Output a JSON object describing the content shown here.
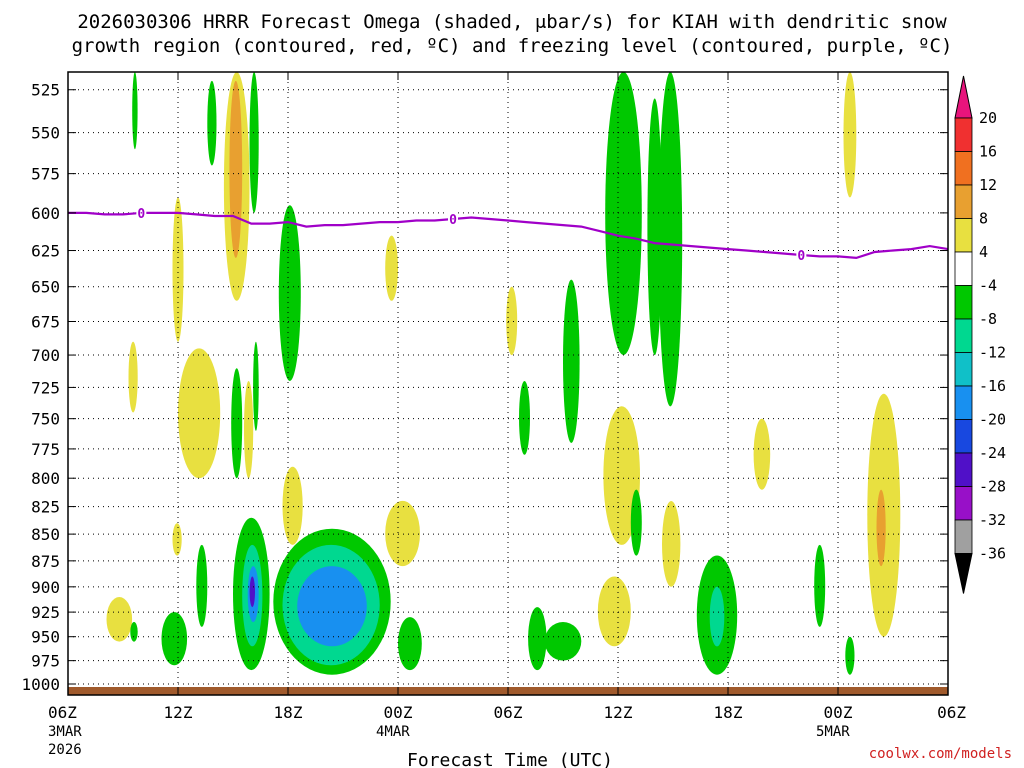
{
  "chart_data": {
    "type": "heatmap",
    "title_line1": "2026030306 HRRR Forecast Omega (shaded, μbar/s) for KIAH with dendritic snow",
    "title_line2": "growth region (contoured, red, ºC) and freezing level (contoured, purple, ºC)",
    "xlabel": "Forecast Time (UTC)",
    "credit": "coolwx.com/models",
    "x_range_hours": [
      0,
      48
    ],
    "y_range_hPa": [
      515,
      1012
    ],
    "y_ticks": [
      "525",
      "550",
      "575",
      "600",
      "625",
      "650",
      "675",
      "700",
      "725",
      "750",
      "775",
      "800",
      "825",
      "850",
      "875",
      "900",
      "925",
      "950",
      "975",
      "1000"
    ],
    "x_ticks": [
      {
        "hour": 0,
        "label": "06Z",
        "sub1": "3MAR",
        "sub2": "2026"
      },
      {
        "hour": 6,
        "label": "12Z",
        "sub1": "",
        "sub2": ""
      },
      {
        "hour": 12,
        "label": "18Z",
        "sub1": "",
        "sub2": ""
      },
      {
        "hour": 18,
        "label": "00Z",
        "sub1": "4MAR",
        "sub2": ""
      },
      {
        "hour": 24,
        "label": "06Z",
        "sub1": "",
        "sub2": ""
      },
      {
        "hour": 30,
        "label": "12Z",
        "sub1": "",
        "sub2": ""
      },
      {
        "hour": 36,
        "label": "18Z",
        "sub1": "",
        "sub2": ""
      },
      {
        "hour": 42,
        "label": "00Z",
        "sub1": "5MAR",
        "sub2": ""
      },
      {
        "hour": 48,
        "label": "06Z",
        "sub1": "",
        "sub2": ""
      }
    ],
    "colorbar": {
      "labels": [
        "20",
        "16",
        "12",
        "8",
        "4",
        "-4",
        "-8",
        "-12",
        "-16",
        "-20",
        "-24",
        "-28",
        "-32",
        "-36"
      ],
      "colors": [
        "#e8147c",
        "#f03030",
        "#f07020",
        "#e8a030",
        "#e8e040",
        "#ffffff",
        "#00c800",
        "#00d890",
        "#10c0c8",
        "#1890f0",
        "#1848e0",
        "#5010c8",
        "#9810c8",
        "#a0a0a0",
        "#000000"
      ]
    },
    "freezing_level": {
      "label": "0",
      "label_hours": [
        4,
        21,
        40
      ],
      "hours": [
        0,
        1,
        2,
        3,
        4,
        5,
        6,
        7,
        8,
        9,
        10,
        11,
        12,
        13,
        14,
        15,
        16,
        17,
        18,
        19,
        20,
        21,
        22,
        23,
        24,
        25,
        26,
        27,
        28,
        29,
        30,
        31,
        32,
        33,
        34,
        35,
        36,
        37,
        38,
        39,
        40,
        41,
        42,
        43,
        44,
        45,
        46,
        47,
        48
      ],
      "pressure": [
        600,
        600,
        601,
        601,
        600,
        600,
        600,
        601,
        602,
        602,
        607,
        607,
        606,
        609,
        608,
        608,
        607,
        606,
        606,
        605,
        605,
        604,
        603,
        604,
        605,
        606,
        607,
        608,
        609,
        612,
        615,
        617,
        620,
        621,
        622,
        623,
        624,
        625,
        626,
        627,
        628,
        629,
        629,
        630,
        626,
        625,
        624,
        622,
        624
      ]
    },
    "omega_regions": [
      {
        "value": -8,
        "t": [
          3.5,
          3.8
        ],
        "p": [
          515,
          560
        ]
      },
      {
        "value": 4,
        "t": [
          2.1,
          3.5
        ],
        "p": [
          910,
          955
        ]
      },
      {
        "value": -8,
        "t": [
          3.4,
          3.8
        ],
        "p": [
          935,
          955
        ]
      },
      {
        "value": 4,
        "t": [
          3.3,
          3.8
        ],
        "p": [
          690,
          745
        ]
      },
      {
        "value": 4,
        "t": [
          5.7,
          6.3
        ],
        "p": [
          590,
          690
        ]
      },
      {
        "value": 4,
        "t": [
          5.7,
          6.2
        ],
        "p": [
          840,
          870
        ]
      },
      {
        "value": 4,
        "t": [
          6.0,
          8.3
        ],
        "p": [
          695,
          800
        ]
      },
      {
        "value": -8,
        "t": [
          5.1,
          6.5
        ],
        "p": [
          925,
          980
        ]
      },
      {
        "value": -8,
        "t": [
          7.6,
          8.1
        ],
        "p": [
          520,
          570
        ]
      },
      {
        "value": 4,
        "t": [
          8.5,
          9.9
        ],
        "p": [
          515,
          660
        ]
      },
      {
        "value": 8,
        "t": [
          8.8,
          9.5
        ],
        "p": [
          520,
          630
        ]
      },
      {
        "value": -8,
        "t": [
          9.9,
          10.4
        ],
        "p": [
          515,
          600
        ]
      },
      {
        "value": -8,
        "t": [
          8.9,
          9.5
        ],
        "p": [
          710,
          800
        ]
      },
      {
        "value": 4,
        "t": [
          9.6,
          10.1
        ],
        "p": [
          720,
          800
        ]
      },
      {
        "value": -8,
        "t": [
          10.1,
          10.4
        ],
        "p": [
          690,
          760
        ]
      },
      {
        "value": -8,
        "t": [
          7.0,
          7.6
        ],
        "p": [
          860,
          940
        ]
      },
      {
        "value": -8,
        "t": [
          9.0,
          11.0
        ],
        "p": [
          835,
          985
        ]
      },
      {
        "value": -12,
        "t": [
          9.5,
          10.6
        ],
        "p": [
          860,
          960
        ]
      },
      {
        "value": -16,
        "t": [
          9.8,
          10.4
        ],
        "p": [
          880,
          935
        ]
      },
      {
        "value": -28,
        "t": [
          9.9,
          10.2
        ],
        "p": [
          890,
          920
        ]
      },
      {
        "value": -8,
        "t": [
          11.5,
          12.7
        ],
        "p": [
          595,
          720
        ]
      },
      {
        "value": 4,
        "t": [
          11.7,
          12.8
        ],
        "p": [
          790,
          860
        ]
      },
      {
        "value": -8,
        "t": [
          11.2,
          17.6
        ],
        "p": [
          845,
          990
        ]
      },
      {
        "value": -12,
        "t": [
          11.7,
          17.0
        ],
        "p": [
          860,
          980
        ]
      },
      {
        "value": -16,
        "t": [
          12.5,
          16.3
        ],
        "p": [
          880,
          960
        ]
      },
      {
        "value": 4,
        "t": [
          17.3,
          18.0
        ],
        "p": [
          615,
          660
        ]
      },
      {
        "value": 4,
        "t": [
          17.3,
          19.2
        ],
        "p": [
          820,
          880
        ]
      },
      {
        "value": -8,
        "t": [
          18.0,
          19.3
        ],
        "p": [
          930,
          985
        ]
      },
      {
        "value": 4,
        "t": [
          23.9,
          24.5
        ],
        "p": [
          650,
          700
        ]
      },
      {
        "value": -8,
        "t": [
          24.6,
          25.2
        ],
        "p": [
          720,
          780
        ]
      },
      {
        "value": -8,
        "t": [
          26.0,
          28.0
        ],
        "p": [
          935,
          975
        ]
      },
      {
        "value": -8,
        "t": [
          25.1,
          26.1
        ],
        "p": [
          920,
          985
        ]
      },
      {
        "value": -8,
        "t": [
          27.0,
          27.9
        ],
        "p": [
          645,
          770
        ]
      },
      {
        "value": -8,
        "t": [
          29.3,
          31.3
        ],
        "p": [
          515,
          700
        ]
      },
      {
        "value": -8,
        "t": [
          31.6,
          32.4
        ],
        "p": [
          530,
          700
        ]
      },
      {
        "value": -8,
        "t": [
          32.2,
          33.5
        ],
        "p": [
          515,
          740
        ]
      },
      {
        "value": 4,
        "t": [
          29.2,
          31.2
        ],
        "p": [
          740,
          860
        ]
      },
      {
        "value": 4,
        "t": [
          32.4,
          33.4
        ],
        "p": [
          820,
          900
        ]
      },
      {
        "value": -8,
        "t": [
          30.7,
          31.3
        ],
        "p": [
          810,
          870
        ]
      },
      {
        "value": 4,
        "t": [
          28.9,
          30.7
        ],
        "p": [
          890,
          960
        ]
      },
      {
        "value": -8,
        "t": [
          34.3,
          36.5
        ],
        "p": [
          870,
          990
        ]
      },
      {
        "value": -12,
        "t": [
          35.0,
          35.8
        ],
        "p": [
          900,
          960
        ]
      },
      {
        "value": 4,
        "t": [
          37.4,
          38.3
        ],
        "p": [
          750,
          810
        ]
      },
      {
        "value": -8,
        "t": [
          40.7,
          41.3
        ],
        "p": [
          860,
          940
        ]
      },
      {
        "value": 4,
        "t": [
          42.3,
          43.0
        ],
        "p": [
          515,
          590
        ]
      },
      {
        "value": -8,
        "t": [
          42.4,
          42.9
        ],
        "p": [
          950,
          990
        ]
      },
      {
        "value": 4,
        "t": [
          43.6,
          45.4
        ],
        "p": [
          730,
          950
        ]
      },
      {
        "value": 8,
        "t": [
          44.1,
          44.6
        ],
        "p": [
          810,
          880
        ]
      }
    ]
  }
}
